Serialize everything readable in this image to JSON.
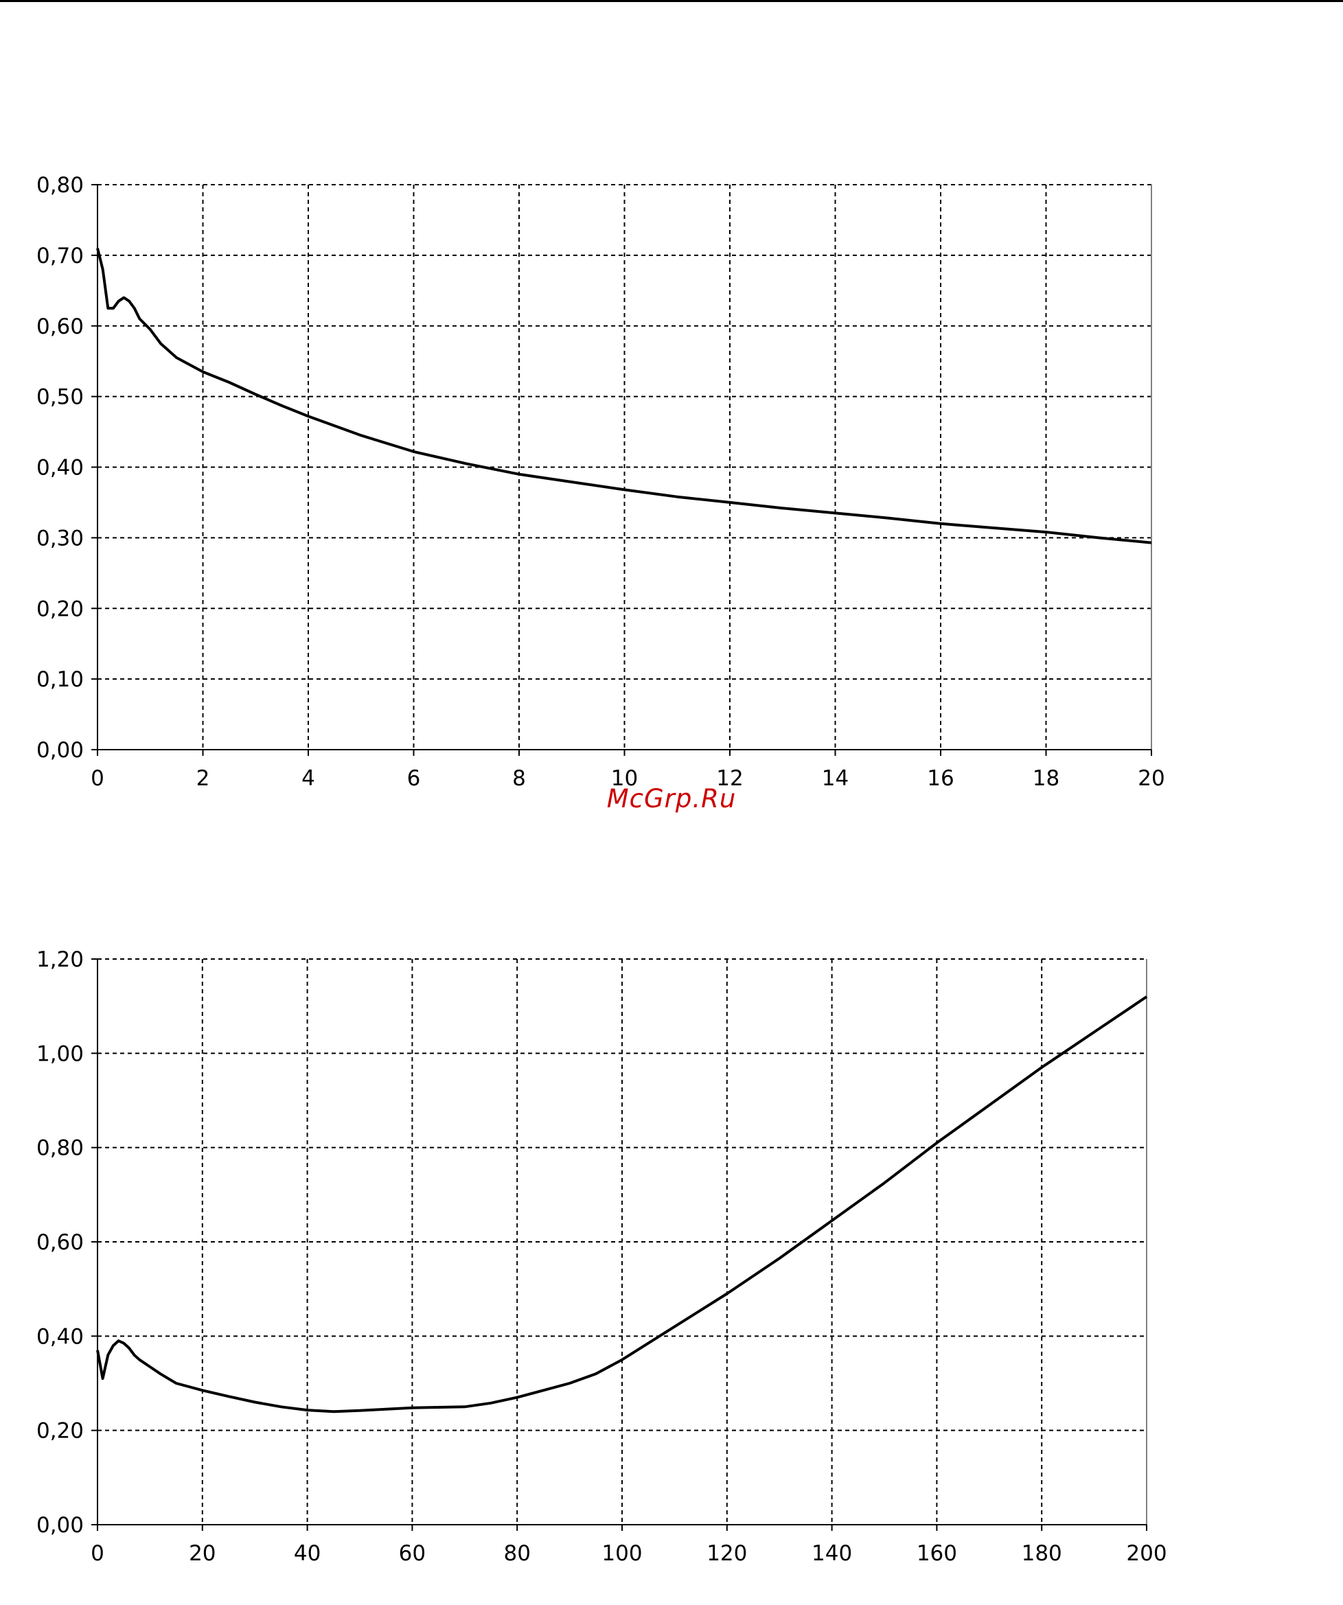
{
  "watermark": "McGrp.Ru",
  "colors": {
    "line": "#000000",
    "grid": "#000000",
    "watermark": "#cc0000"
  },
  "chart_data": [
    {
      "type": "line",
      "title": "",
      "xlabel": "",
      "ylabel": "",
      "grid": true,
      "xlim": [
        0,
        20
      ],
      "ylim": [
        0,
        0.8
      ],
      "x_ticks": [
        "0",
        "2",
        "4",
        "6",
        "8",
        "10",
        "12",
        "14",
        "16",
        "18",
        "20"
      ],
      "y_ticks": [
        "0,00",
        "0,10",
        "0,20",
        "0,30",
        "0,40",
        "0,50",
        "0,60",
        "0,70",
        "0,80"
      ],
      "series": [
        {
          "x": [
            0,
            0.1,
            0.2,
            0.3,
            0.4,
            0.5,
            0.6,
            0.7,
            0.8,
            1.0,
            1.2,
            1.5,
            2,
            2.5,
            3,
            3.5,
            4,
            5,
            6,
            7,
            8,
            9,
            10,
            11,
            12,
            13,
            14,
            15,
            16,
            17,
            18,
            19,
            20
          ],
          "y": [
            0.71,
            0.68,
            0.625,
            0.625,
            0.635,
            0.64,
            0.635,
            0.625,
            0.61,
            0.595,
            0.575,
            0.555,
            0.535,
            0.52,
            0.503,
            0.487,
            0.472,
            0.445,
            0.422,
            0.405,
            0.39,
            0.379,
            0.368,
            0.358,
            0.35,
            0.342,
            0.335,
            0.328,
            0.32,
            0.314,
            0.308,
            0.3,
            0.293
          ]
        }
      ]
    },
    {
      "type": "line",
      "title": "",
      "xlabel": "",
      "ylabel": "",
      "grid": true,
      "xlim": [
        0,
        200
      ],
      "ylim": [
        0,
        1.2
      ],
      "x_ticks": [
        "0",
        "20",
        "40",
        "60",
        "80",
        "100",
        "120",
        "140",
        "160",
        "180",
        "200"
      ],
      "y_ticks": [
        "0,00",
        "0,20",
        "0,40",
        "0,60",
        "0,80",
        "1,00",
        "1,20"
      ],
      "series": [
        {
          "x": [
            0,
            1,
            2,
            3,
            4,
            5,
            6,
            7,
            8,
            10,
            12,
            15,
            20,
            25,
            30,
            35,
            40,
            45,
            50,
            55,
            60,
            65,
            70,
            75,
            80,
            85,
            90,
            95,
            100,
            110,
            120,
            130,
            140,
            150,
            160,
            170,
            180,
            190,
            200
          ],
          "y": [
            0.37,
            0.31,
            0.36,
            0.38,
            0.39,
            0.385,
            0.375,
            0.36,
            0.35,
            0.335,
            0.32,
            0.3,
            0.285,
            0.272,
            0.26,
            0.25,
            0.243,
            0.24,
            0.242,
            0.245,
            0.248,
            0.249,
            0.25,
            0.258,
            0.27,
            0.285,
            0.3,
            0.32,
            0.35,
            0.42,
            0.49,
            0.565,
            0.645,
            0.725,
            0.81,
            0.89,
            0.97,
            1.045,
            1.12
          ]
        }
      ]
    }
  ]
}
